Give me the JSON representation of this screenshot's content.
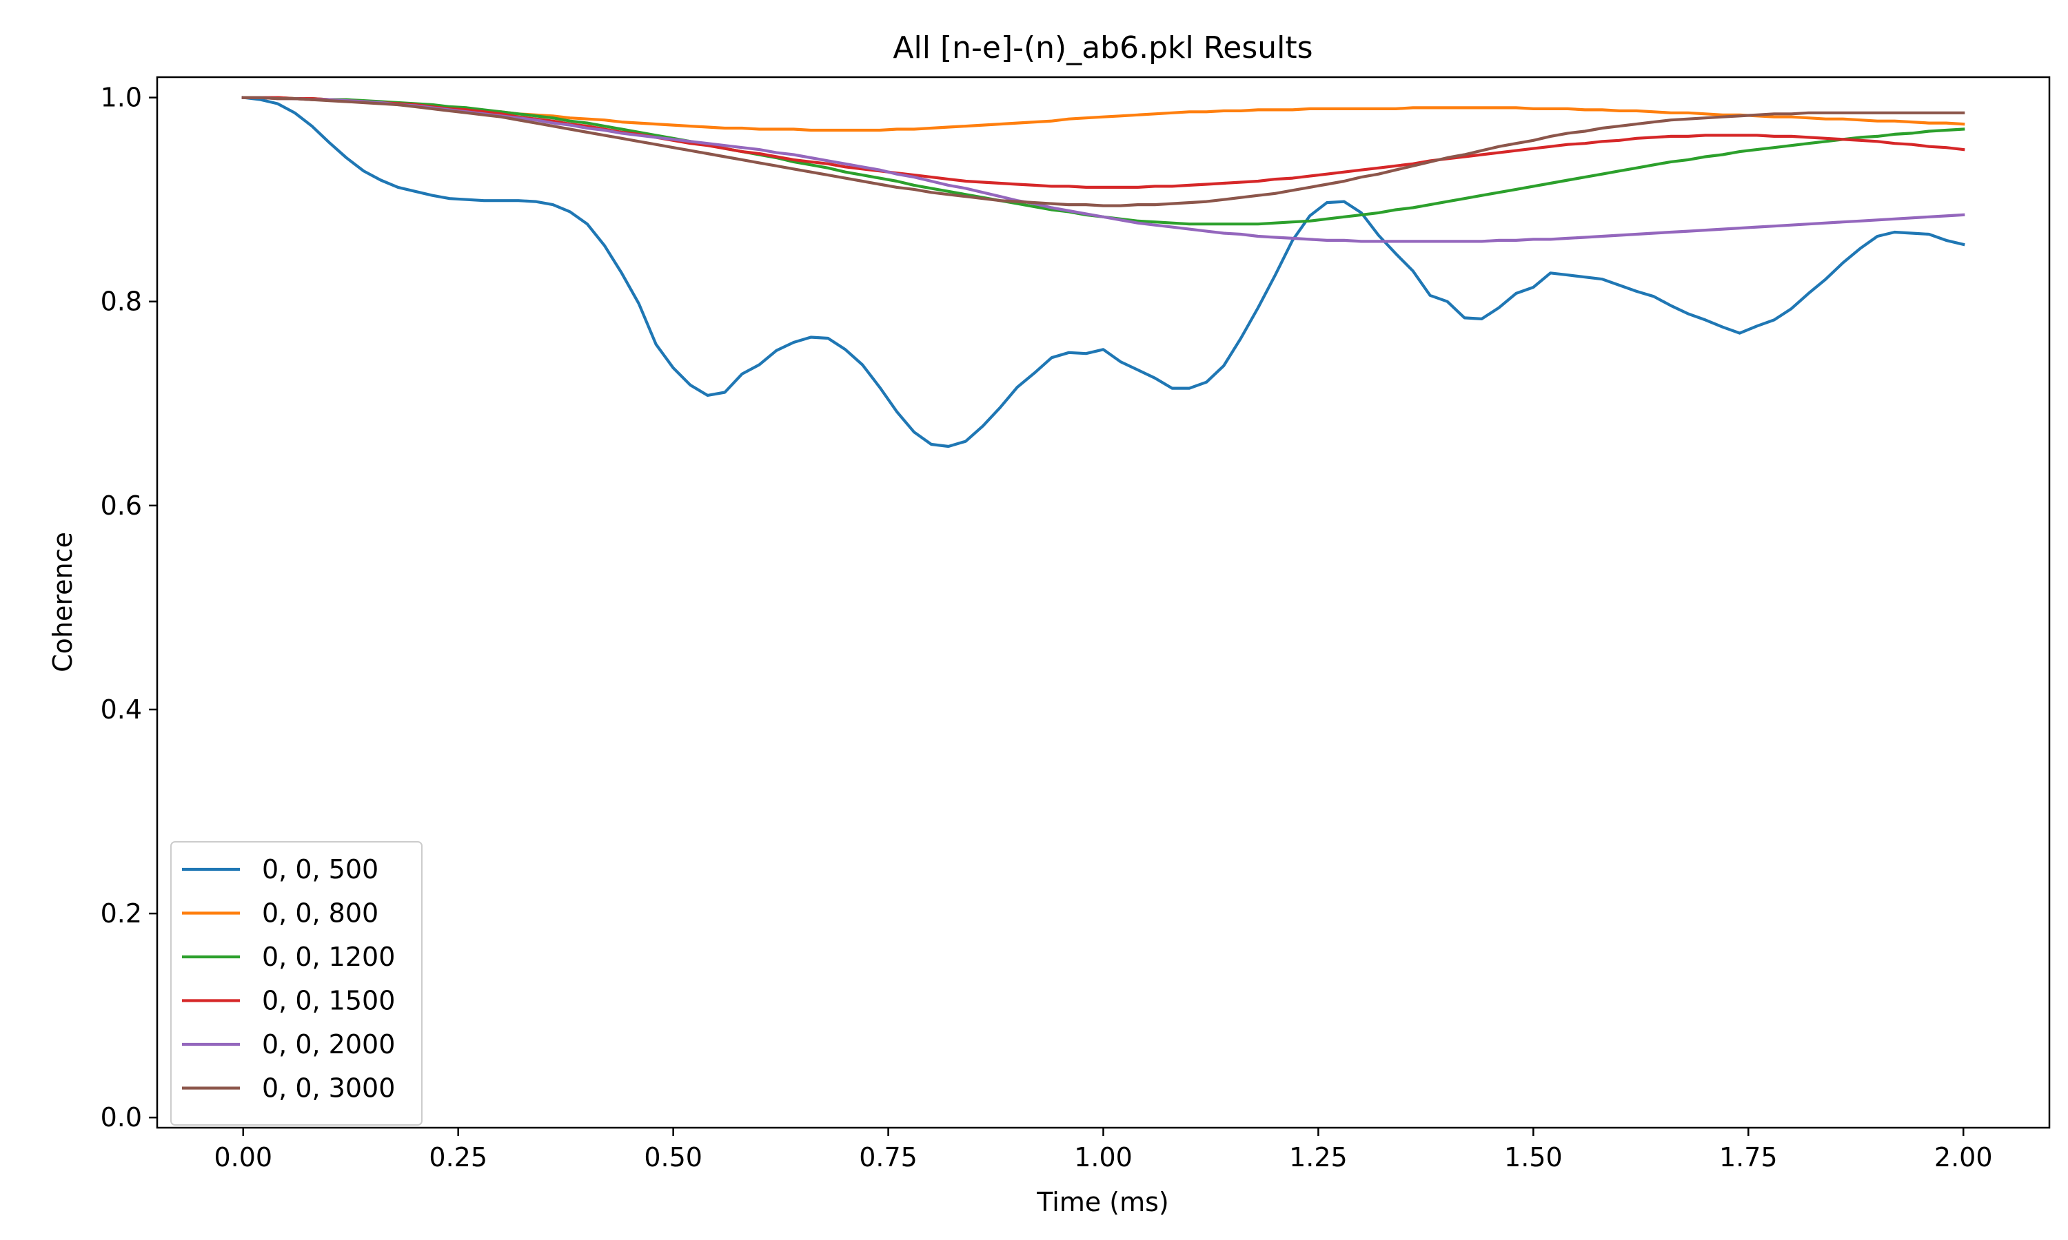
{
  "chart_data": {
    "type": "line",
    "title": "All [n-e]-(n)_ab6.pkl Results",
    "xlabel": "Time (ms)",
    "ylabel": "Coherence",
    "xlim": [
      -0.1,
      2.1
    ],
    "ylim": [
      -0.01,
      1.02
    ],
    "xticks": [
      "0.00",
      "0.25",
      "0.50",
      "0.75",
      "1.00",
      "1.25",
      "1.50",
      "1.75",
      "2.00"
    ],
    "yticks": [
      "0.0",
      "0.2",
      "0.4",
      "0.6",
      "0.8",
      "1.0"
    ],
    "grid": false,
    "legend_position": "lower-left",
    "x": [
      0.0,
      0.02,
      0.04,
      0.06,
      0.08,
      0.1,
      0.12,
      0.14,
      0.16,
      0.18,
      0.2,
      0.22,
      0.24,
      0.26,
      0.28,
      0.3,
      0.32,
      0.34,
      0.36,
      0.38,
      0.4,
      0.42,
      0.44,
      0.46,
      0.48,
      0.5,
      0.52,
      0.54,
      0.56,
      0.58,
      0.6,
      0.62,
      0.64,
      0.66,
      0.68,
      0.7,
      0.72,
      0.74,
      0.76,
      0.78,
      0.8,
      0.82,
      0.84,
      0.86,
      0.88,
      0.9,
      0.92,
      0.94,
      0.96,
      0.98,
      1.0,
      1.02,
      1.04,
      1.06,
      1.08,
      1.1,
      1.12,
      1.14,
      1.16,
      1.18,
      1.2,
      1.22,
      1.24,
      1.26,
      1.28,
      1.3,
      1.32,
      1.34,
      1.36,
      1.38,
      1.4,
      1.42,
      1.44,
      1.46,
      1.48,
      1.5,
      1.52,
      1.54,
      1.56,
      1.58,
      1.6,
      1.62,
      1.64,
      1.66,
      1.68,
      1.7,
      1.72,
      1.74,
      1.76,
      1.78,
      1.8,
      1.82,
      1.84,
      1.86,
      1.88,
      1.9,
      1.92,
      1.94,
      1.96,
      1.98,
      2.0
    ],
    "series": [
      {
        "name": "0, 0, 500",
        "color": "#1f77b4",
        "values": [
          1.0,
          0.998,
          0.994,
          0.985,
          0.972,
          0.956,
          0.941,
          0.928,
          0.919,
          0.912,
          0.908,
          0.904,
          0.901,
          0.9,
          0.899,
          0.899,
          0.899,
          0.898,
          0.895,
          0.888,
          0.876,
          0.855,
          0.828,
          0.798,
          0.758,
          0.735,
          0.718,
          0.708,
          0.711,
          0.729,
          0.738,
          0.752,
          0.76,
          0.765,
          0.764,
          0.753,
          0.738,
          0.716,
          0.692,
          0.672,
          0.66,
          0.658,
          0.663,
          0.678,
          0.696,
          0.716,
          0.73,
          0.745,
          0.75,
          0.749,
          0.753,
          0.741,
          0.733,
          0.725,
          0.715,
          0.715,
          0.721,
          0.737,
          0.764,
          0.794,
          0.826,
          0.86,
          0.884,
          0.897,
          0.898,
          0.887,
          0.865,
          0.847,
          0.83,
          0.806,
          0.8,
          0.784,
          0.783,
          0.794,
          0.808,
          0.814,
          0.828,
          0.826,
          0.824,
          0.822,
          0.816,
          0.81,
          0.805,
          0.796,
          0.788,
          0.782,
          0.775,
          0.769,
          0.776,
          0.782,
          0.793,
          0.808,
          0.822,
          0.838,
          0.852,
          0.864,
          0.868,
          0.867,
          0.866,
          0.86,
          0.856
        ]
      },
      {
        "name": "0, 0, 800",
        "color": "#ff7f0e",
        "values": [
          1.0,
          1.0,
          0.999,
          0.999,
          0.998,
          0.998,
          0.997,
          0.996,
          0.995,
          0.994,
          0.993,
          0.991,
          0.99,
          0.989,
          0.987,
          0.986,
          0.984,
          0.983,
          0.982,
          0.98,
          0.979,
          0.978,
          0.976,
          0.975,
          0.974,
          0.973,
          0.972,
          0.971,
          0.97,
          0.97,
          0.969,
          0.969,
          0.969,
          0.968,
          0.968,
          0.968,
          0.968,
          0.968,
          0.969,
          0.969,
          0.97,
          0.971,
          0.972,
          0.973,
          0.974,
          0.975,
          0.976,
          0.977,
          0.979,
          0.98,
          0.981,
          0.982,
          0.983,
          0.984,
          0.985,
          0.986,
          0.986,
          0.987,
          0.987,
          0.988,
          0.988,
          0.988,
          0.989,
          0.989,
          0.989,
          0.989,
          0.989,
          0.989,
          0.99,
          0.99,
          0.99,
          0.99,
          0.99,
          0.99,
          0.99,
          0.989,
          0.989,
          0.989,
          0.988,
          0.988,
          0.987,
          0.987,
          0.986,
          0.985,
          0.985,
          0.984,
          0.983,
          0.983,
          0.982,
          0.981,
          0.981,
          0.98,
          0.979,
          0.979,
          0.978,
          0.977,
          0.977,
          0.976,
          0.975,
          0.975,
          0.974
        ]
      },
      {
        "name": "0, 0, 1200",
        "color": "#2ca02c",
        "values": [
          1.0,
          1.0,
          1.0,
          0.999,
          0.999,
          0.998,
          0.998,
          0.997,
          0.996,
          0.995,
          0.994,
          0.993,
          0.991,
          0.99,
          0.988,
          0.986,
          0.984,
          0.982,
          0.98,
          0.977,
          0.975,
          0.972,
          0.969,
          0.966,
          0.963,
          0.96,
          0.957,
          0.954,
          0.95,
          0.947,
          0.944,
          0.941,
          0.937,
          0.934,
          0.931,
          0.927,
          0.924,
          0.921,
          0.918,
          0.914,
          0.911,
          0.908,
          0.905,
          0.902,
          0.899,
          0.896,
          0.893,
          0.89,
          0.888,
          0.885,
          0.883,
          0.881,
          0.879,
          0.878,
          0.877,
          0.876,
          0.876,
          0.876,
          0.876,
          0.876,
          0.877,
          0.878,
          0.879,
          0.881,
          0.883,
          0.885,
          0.887,
          0.89,
          0.892,
          0.895,
          0.898,
          0.901,
          0.904,
          0.907,
          0.91,
          0.913,
          0.916,
          0.919,
          0.922,
          0.925,
          0.928,
          0.931,
          0.934,
          0.937,
          0.939,
          0.942,
          0.944,
          0.947,
          0.949,
          0.951,
          0.953,
          0.955,
          0.957,
          0.959,
          0.961,
          0.962,
          0.964,
          0.965,
          0.967,
          0.968,
          0.969
        ]
      },
      {
        "name": "0, 0, 1500",
        "color": "#d62728",
        "values": [
          1.0,
          1.0,
          1.0,
          0.999,
          0.999,
          0.998,
          0.997,
          0.996,
          0.995,
          0.994,
          0.993,
          0.991,
          0.989,
          0.988,
          0.986,
          0.984,
          0.981,
          0.979,
          0.977,
          0.974,
          0.972,
          0.969,
          0.966,
          0.964,
          0.961,
          0.958,
          0.955,
          0.953,
          0.95,
          0.947,
          0.945,
          0.942,
          0.939,
          0.937,
          0.935,
          0.932,
          0.93,
          0.928,
          0.926,
          0.924,
          0.922,
          0.92,
          0.918,
          0.917,
          0.916,
          0.915,
          0.914,
          0.913,
          0.913,
          0.912,
          0.912,
          0.912,
          0.912,
          0.913,
          0.913,
          0.914,
          0.915,
          0.916,
          0.917,
          0.918,
          0.92,
          0.921,
          0.923,
          0.925,
          0.927,
          0.929,
          0.931,
          0.933,
          0.935,
          0.938,
          0.94,
          0.942,
          0.944,
          0.946,
          0.948,
          0.95,
          0.952,
          0.954,
          0.955,
          0.957,
          0.958,
          0.96,
          0.961,
          0.962,
          0.962,
          0.963,
          0.963,
          0.963,
          0.963,
          0.962,
          0.962,
          0.961,
          0.96,
          0.959,
          0.958,
          0.957,
          0.955,
          0.954,
          0.952,
          0.951,
          0.949
        ]
      },
      {
        "name": "0, 0, 2000",
        "color": "#9467bd",
        "values": [
          1.0,
          1.0,
          0.999,
          0.999,
          0.998,
          0.998,
          0.997,
          0.996,
          0.995,
          0.993,
          0.992,
          0.99,
          0.988,
          0.986,
          0.984,
          0.982,
          0.98,
          0.978,
          0.975,
          0.973,
          0.97,
          0.968,
          0.965,
          0.963,
          0.961,
          0.959,
          0.957,
          0.955,
          0.953,
          0.951,
          0.949,
          0.946,
          0.944,
          0.941,
          0.938,
          0.935,
          0.932,
          0.929,
          0.925,
          0.922,
          0.918,
          0.914,
          0.911,
          0.907,
          0.903,
          0.899,
          0.896,
          0.892,
          0.889,
          0.886,
          0.883,
          0.88,
          0.877,
          0.875,
          0.873,
          0.871,
          0.869,
          0.867,
          0.866,
          0.864,
          0.863,
          0.862,
          0.861,
          0.86,
          0.86,
          0.859,
          0.859,
          0.859,
          0.859,
          0.859,
          0.859,
          0.859,
          0.859,
          0.86,
          0.86,
          0.861,
          0.861,
          0.862,
          0.863,
          0.864,
          0.865,
          0.866,
          0.867,
          0.868,
          0.869,
          0.87,
          0.871,
          0.872,
          0.873,
          0.874,
          0.875,
          0.876,
          0.877,
          0.878,
          0.879,
          0.88,
          0.881,
          0.882,
          0.883,
          0.884,
          0.885
        ]
      },
      {
        "name": "0, 0, 3000",
        "color": "#8c564b",
        "values": [
          1.0,
          1.0,
          0.999,
          0.999,
          0.998,
          0.997,
          0.996,
          0.995,
          0.994,
          0.993,
          0.991,
          0.989,
          0.987,
          0.985,
          0.983,
          0.981,
          0.978,
          0.975,
          0.972,
          0.969,
          0.966,
          0.963,
          0.96,
          0.957,
          0.954,
          0.951,
          0.948,
          0.945,
          0.942,
          0.939,
          0.936,
          0.933,
          0.93,
          0.927,
          0.924,
          0.921,
          0.918,
          0.915,
          0.912,
          0.91,
          0.907,
          0.905,
          0.903,
          0.901,
          0.899,
          0.898,
          0.897,
          0.896,
          0.895,
          0.895,
          0.894,
          0.894,
          0.895,
          0.895,
          0.896,
          0.897,
          0.898,
          0.9,
          0.902,
          0.904,
          0.906,
          0.909,
          0.912,
          0.915,
          0.918,
          0.922,
          0.925,
          0.929,
          0.933,
          0.937,
          0.941,
          0.944,
          0.948,
          0.952,
          0.955,
          0.958,
          0.962,
          0.965,
          0.967,
          0.97,
          0.972,
          0.974,
          0.976,
          0.978,
          0.979,
          0.98,
          0.981,
          0.982,
          0.983,
          0.984,
          0.984,
          0.985,
          0.985,
          0.985,
          0.985,
          0.985,
          0.985,
          0.985,
          0.985,
          0.985,
          0.985
        ]
      }
    ]
  }
}
